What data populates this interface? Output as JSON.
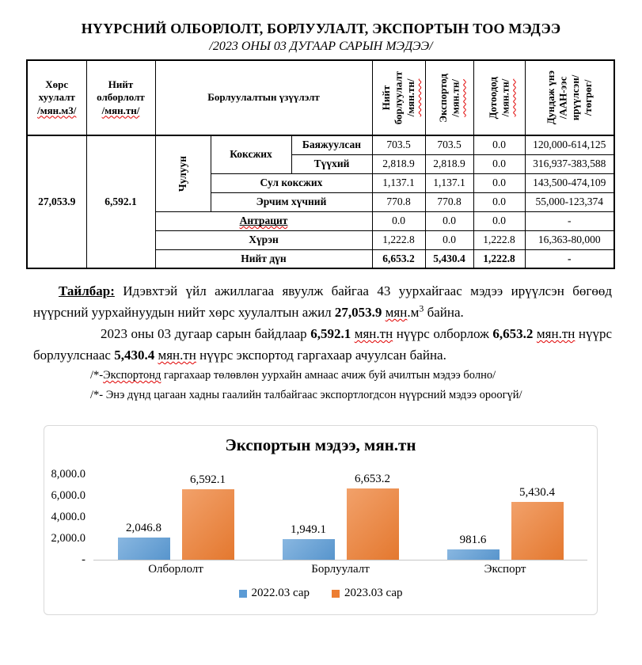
{
  "page": {
    "title": "НҮҮРСНИЙ ОЛБОРЛОЛТ, БОРЛУУЛАЛТ, ЭКСПОРТЫН ТОО МЭДЭЭ",
    "subtitle": "/2023 ОНЫ 03 ДУГААР САРЫН МЭДЭЭ/"
  },
  "table": {
    "header": {
      "soil": [
        {
          "t": "Хөрс"
        },
        {
          "br": true
        },
        {
          "t": "хуулалт"
        },
        {
          "br": true
        },
        {
          "t": "/мян.м3/",
          "w": true
        }
      ],
      "mining": [
        {
          "t": "Нийт"
        },
        {
          "br": true
        },
        {
          "t": "олборлолт"
        },
        {
          "br": true
        },
        {
          "t": "/мян.тн/",
          "w": true
        }
      ],
      "sales_group": "Борлуулалтын үзүүлэлт",
      "total_sales": [
        {
          "t": "Нийт"
        },
        {
          "br": true
        },
        {
          "t": "борлуулалт"
        },
        {
          "br": true
        },
        {
          "t": "/мян.тн/",
          "w": true
        }
      ],
      "export": [
        {
          "t": "Экспортод"
        },
        {
          "br": true
        },
        {
          "t": "/мян.тн/",
          "w": true
        }
      ],
      "domestic": [
        {
          "t": "Дотоодод"
        },
        {
          "br": true
        },
        {
          "t": "/мян.тн/",
          "w": true
        }
      ],
      "avg_price": [
        {
          "t": "Дундаж үнэ"
        },
        {
          "br": true
        },
        {
          "t": "/ААН-ээс"
        },
        {
          "br": true
        },
        {
          "t": "ирүүлсэн/"
        },
        {
          "br": true
        },
        {
          "t": "/төгрөг/"
        }
      ]
    },
    "soil_total": "27,053.9",
    "mining_total": "6,592.1",
    "coal_class": "Чулуун",
    "rows": [
      {
        "group": "Коксжих",
        "label": "Баяжуулсан",
        "sales": "703.5",
        "export": "703.5",
        "domestic": "0.0",
        "price": "120,000-614,125"
      },
      {
        "label": "Түүхий",
        "sales": "2,818.9",
        "export": "2,818.9",
        "domestic": "0.0",
        "price": "316,937-383,588"
      },
      {
        "label": "Сул коксжих",
        "sales": "1,137.1",
        "export": "1,137.1",
        "domestic": "0.0",
        "price": "143,500-474,109"
      },
      {
        "label": "Эрчим хүчний",
        "sales": "770.8",
        "export": "770.8",
        "domestic": "0.0",
        "price": "55,000-123,374"
      },
      {
        "label_rich": [
          {
            "t": "Антрацит",
            "u": true,
            "w": true
          }
        ],
        "sales": "0.0",
        "export": "0.0",
        "domestic": "0.0",
        "price": "-"
      },
      {
        "label": "Хүрэн",
        "sales": "1,222.8",
        "export": "0.0",
        "domestic": "1,222.8",
        "price": "16,363-80,000"
      },
      {
        "label": "Нийт дүн",
        "sales": "6,653.2",
        "export": "5,430.4",
        "domestic": "1,222.8",
        "price": "-"
      }
    ]
  },
  "notes": {
    "p1": [
      {
        "t": "Тайлбар:",
        "b": true,
        "u": true
      },
      {
        "t": " Идэвхтэй үйл ажиллагаа явуулж байгаа 43 уурхайгаас мэдээ ирүүлсэн бөгөөд нүүрсний уурхайнуудын нийт хөрс хуулалтын ажил "
      },
      {
        "t": "27,053.9",
        "b": true
      },
      {
        "t": " "
      },
      {
        "t": "мян",
        "w": true
      },
      {
        "t": ".м"
      },
      {
        "t": "3",
        "sup": true
      },
      {
        "t": " байна."
      }
    ],
    "p2": [
      {
        "t": "2023 оны 03 дугаар сарын байдлаар "
      },
      {
        "t": "6,592.1",
        "b": true
      },
      {
        "t": " "
      },
      {
        "t": "мян.тн",
        "w": true
      },
      {
        "t": " нүүрс олборлож "
      },
      {
        "t": "6,653.2",
        "b": true
      },
      {
        "t": " "
      },
      {
        "t": "мян.тн",
        "w": true
      },
      {
        "t": " нүүрс борлуулснаас "
      },
      {
        "t": "5,430.4",
        "b": true
      },
      {
        "t": " "
      },
      {
        "t": "мян.тн",
        "w": true
      },
      {
        "t": " нүүрс экспортод гаргахаар ачуулсан байна."
      }
    ],
    "fn1": [
      {
        "t": "/*-"
      },
      {
        "t": "Экспортонд",
        "w": true
      },
      {
        "t": " гаргахаар төлөвлөн уурхайн амнаас ачиж буй ачилтын мэдээ болно/"
      }
    ],
    "fn2": [
      {
        "t": "/*- Энэ дүнд цагаан хадны гаалийн талбайгаас экспортлогдсон нүүрсний мэдээ ороогүй/"
      }
    ]
  },
  "chart_data": {
    "type": "bar",
    "title": "Экспортын мэдээ, мян.тн",
    "categories": [
      "Олборлолт",
      "Борлуулалт",
      "Экспорт"
    ],
    "series": [
      {
        "name": "2022.03 сар",
        "color": "#5B9BD5",
        "values": [
          2046.8,
          1949.1,
          981.6
        ],
        "labels": [
          "2,046.8",
          "1,949.1",
          "981.6"
        ]
      },
      {
        "name": "2023.03 сар",
        "color": "#ED7D31",
        "values": [
          6592.1,
          6653.2,
          5430.4
        ],
        "labels": [
          "6,592.1",
          "6,653.2",
          "5,430.4"
        ]
      }
    ],
    "y_ticks": [
      "8,000.0",
      "6,000.0",
      "4,000.0",
      "2,000.0",
      "-"
    ],
    "ylim": [
      0,
      8000
    ],
    "grid": false,
    "legend_position": "bottom"
  }
}
